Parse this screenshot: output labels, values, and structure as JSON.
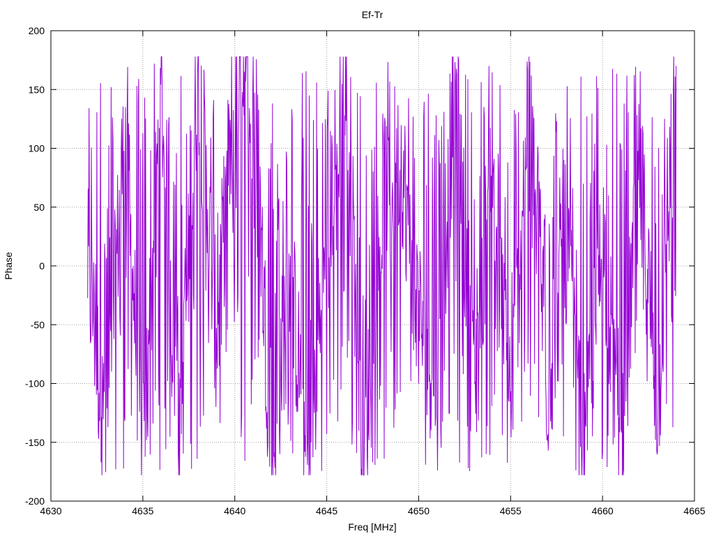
{
  "chart_data": {
    "type": "line",
    "title": "Ef-Tr",
    "xlabel": "Freq [MHz]",
    "ylabel": "Phase",
    "xlim": [
      4630,
      4665
    ],
    "ylim": [
      -200,
      200
    ],
    "xticks": [
      4630,
      4635,
      4640,
      4645,
      4650,
      4655,
      4660,
      4665
    ],
    "yticks": [
      -200,
      -150,
      -100,
      -50,
      0,
      50,
      100,
      150,
      200
    ],
    "grid": true,
    "series_color": "#9400d3",
    "series": [
      {
        "x": [
          4632.0,
          4633.0,
          4634.0,
          4635.0,
          4636.0,
          4637.0,
          4638.0,
          4639.0,
          4640.0,
          4641.0,
          4642.0,
          4643.0,
          4644.0,
          4645.0,
          4646.0,
          4647.0,
          4648.0,
          4649.0,
          4650.0,
          4651.0,
          4652.0,
          4653.0,
          4654.0,
          4655.0,
          4656.0,
          4657.0,
          4658.0,
          4659.0,
          4660.0,
          4661.0,
          4662.0,
          4663.0,
          4664.0
        ],
        "y": [
          0,
          -150,
          120,
          -170,
          150,
          -160,
          170,
          -60,
          160,
          175,
          -170,
          0,
          -175,
          20,
          170,
          -170,
          60,
          100,
          -40,
          -100,
          160,
          -120,
          110,
          -150,
          170,
          -110,
          20,
          -175,
          30,
          -160,
          90,
          -120,
          170
        ]
      }
    ]
  }
}
